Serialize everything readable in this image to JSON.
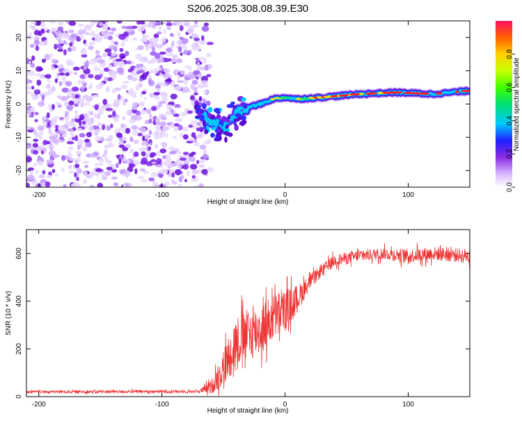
{
  "title": "S206.2025.308.08.39.E30",
  "chart_data": [
    {
      "type": "heatmap",
      "xlabel": "Height of straight line (km)",
      "ylabel": "Frequency (Hz)",
      "xlim": [
        -210,
        150
      ],
      "ylim": [
        -25,
        25
      ],
      "x_ticks": [
        -200,
        -100,
        0,
        100
      ],
      "y_ticks": [
        -20,
        -10,
        0,
        10,
        20
      ],
      "noise_region_x": [
        -210,
        -62
      ],
      "ridge": {
        "x": [
          -70,
          -60,
          -50,
          -40,
          -30,
          -20,
          -10,
          0,
          10,
          30,
          60,
          90,
          120,
          150
        ],
        "frequency": [
          -3,
          -5,
          -7,
          -3,
          -1,
          0,
          1.5,
          2,
          1.5,
          2,
          3,
          3.5,
          3,
          4
        ]
      },
      "colorbar": {
        "label": "Normalized spectral amplitude",
        "ticks": [
          0.0,
          0.2,
          0.4,
          0.6,
          0.8
        ],
        "range": [
          0,
          1
        ]
      }
    },
    {
      "type": "line",
      "xlabel": "Height of straight line (km)",
      "ylabel": "SNR (10 * v/v)",
      "xlim": [
        -210,
        150
      ],
      "ylim": [
        0,
        700
      ],
      "x_ticks": [
        -200,
        -100,
        0,
        100
      ],
      "y_ticks": [
        0,
        200,
        400,
        600
      ],
      "color": "#ee3333",
      "envelope": {
        "x": [
          -210,
          -70,
          -60,
          -50,
          -40,
          -30,
          -20,
          -10,
          0,
          10,
          20,
          30,
          40,
          60,
          80,
          100,
          120,
          150
        ],
        "mean": [
          20,
          22,
          40,
          120,
          230,
          260,
          280,
          330,
          360,
          410,
          480,
          530,
          570,
          590,
          600,
          590,
          600,
          590
        ],
        "noise": [
          6,
          6,
          30,
          80,
          110,
          110,
          110,
          100,
          90,
          60,
          30,
          25,
          25,
          25,
          25,
          30,
          30,
          30
        ]
      }
    }
  ]
}
